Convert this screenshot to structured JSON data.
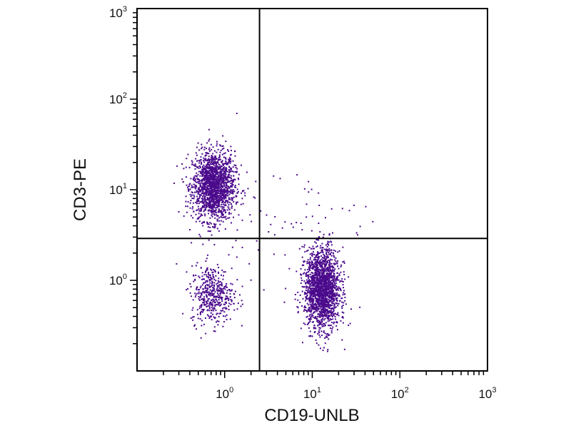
{
  "chart_data": {
    "type": "scatter",
    "title": "",
    "xlabel": "CD19-UNLB",
    "ylabel": "CD3-PE",
    "x_scale": "log",
    "y_scale": "log",
    "xlim": [
      0.1,
      1000
    ],
    "ylim": [
      0.1,
      1000
    ],
    "x_ticks": [
      {
        "value": 1,
        "base": "10",
        "exp": "0"
      },
      {
        "value": 10,
        "base": "10",
        "exp": "1"
      },
      {
        "value": 100,
        "base": "10",
        "exp": "2"
      },
      {
        "value": 1000,
        "base": "10",
        "exp": "3"
      }
    ],
    "y_ticks": [
      {
        "value": 1,
        "base": "10",
        "exp": "0"
      },
      {
        "value": 10,
        "base": "10",
        "exp": "1"
      },
      {
        "value": 100,
        "base": "10",
        "exp": "2"
      },
      {
        "value": 1000,
        "base": "10",
        "exp": "3"
      }
    ],
    "gates": {
      "x": 2.5,
      "y": 2.9
    },
    "grid": false,
    "legend": "none",
    "point_color": "#4b0a8c",
    "series": [
      {
        "populations": [
          {
            "cx": 0.75,
            "cy": 11,
            "sx": 0.12,
            "sy": 0.19,
            "n": 1700
          },
          {
            "cx": 0.72,
            "cy": 0.7,
            "sx": 0.12,
            "sy": 0.16,
            "n": 450
          },
          {
            "cx": 13,
            "cy": 0.8,
            "sx": 0.1,
            "sy": 0.22,
            "n": 1800
          },
          {
            "cx": 5,
            "cy": 3,
            "sx": 0.45,
            "sy": 0.45,
            "n": 90
          }
        ]
      }
    ]
  }
}
